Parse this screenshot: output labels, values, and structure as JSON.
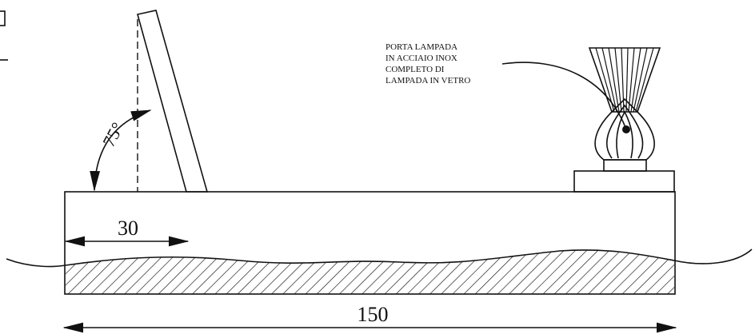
{
  "annotation": {
    "lines": [
      "PORTA LAMPADA",
      "IN ACCIAIO INOX",
      "COMPLETO DI",
      "LAMPADA IN VETRO"
    ]
  },
  "angle_label": "75°",
  "dimensions": {
    "short": "30",
    "overall": "150"
  }
}
